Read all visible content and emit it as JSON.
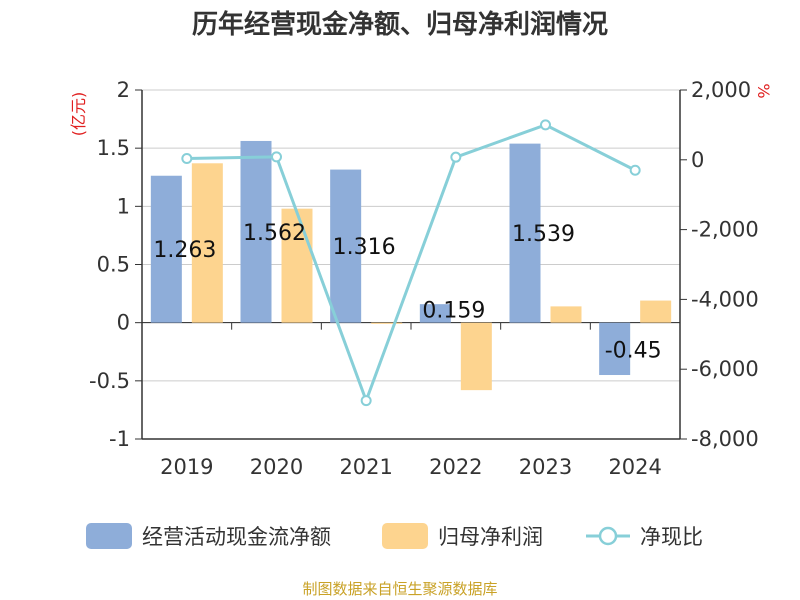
{
  "chart_data": {
    "type": "bar",
    "title": "历年经营现金净额、归母净利润情况",
    "categories": [
      "2019",
      "2020",
      "2021",
      "2022",
      "2023",
      "2024"
    ],
    "y_left": {
      "label": "(亿元)",
      "ylim": [
        -1,
        2
      ],
      "ticks": [
        "-1",
        "-0.5",
        "0",
        "0.5",
        "1",
        "1.5",
        "2"
      ]
    },
    "y_right": {
      "label": "%",
      "ylim": [
        -8000,
        2000
      ],
      "ticks": [
        "-8,000",
        "-6,000",
        "-4,000",
        "-2,000",
        "0",
        "2,000"
      ]
    },
    "series": [
      {
        "name": "经营活动现金流净额",
        "type": "bar",
        "axis": "left",
        "color": "#8eadd9",
        "values": [
          1.263,
          1.562,
          1.316,
          0.159,
          1.539,
          -0.45
        ],
        "data_labels": [
          "1.263",
          "1.562",
          "1.316",
          "0.159",
          "1.539",
          "-0.45"
        ]
      },
      {
        "name": "归母净利润",
        "type": "bar",
        "axis": "left",
        "color": "#fdd48f",
        "values": [
          1.37,
          0.98,
          -0.01,
          -0.58,
          0.14,
          0.19
        ]
      },
      {
        "name": "净现比",
        "type": "line",
        "axis": "right",
        "color": "#87cfd8",
        "values": [
          37,
          83,
          -6900,
          75,
          1000,
          -300
        ]
      }
    ],
    "grid": true,
    "legend_position": "bottom"
  },
  "source": "制图数据来自恒生聚源数据库"
}
